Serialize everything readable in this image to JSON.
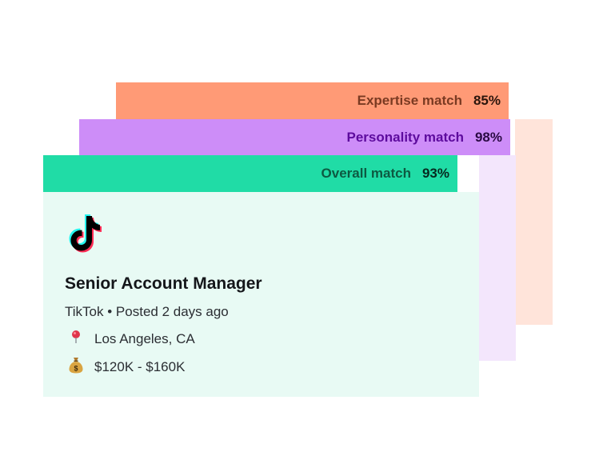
{
  "matches": {
    "expertise": {
      "label": "Expertise match",
      "percent": "85%",
      "color": "#FF9A76"
    },
    "personality": {
      "label": "Personality match",
      "percent": "98%",
      "color": "#CD8DF8"
    },
    "overall": {
      "label": "Overall match",
      "percent": "93%",
      "color": "#20DCA6"
    }
  },
  "job": {
    "company_logo": "tiktok-logo",
    "title": "Senior Account Manager",
    "company": "TikTok",
    "separator": "•",
    "posted": "Posted 2 days ago",
    "location_icon": "pin-icon",
    "location": "Los Angeles, CA",
    "salary_icon": "money-bag-icon",
    "salary": "$120K - $160K"
  },
  "colors": {
    "card_background": "#E8FAF4",
    "expertise_back": "#FFE4DA",
    "personality_back": "#F3E6FC"
  }
}
